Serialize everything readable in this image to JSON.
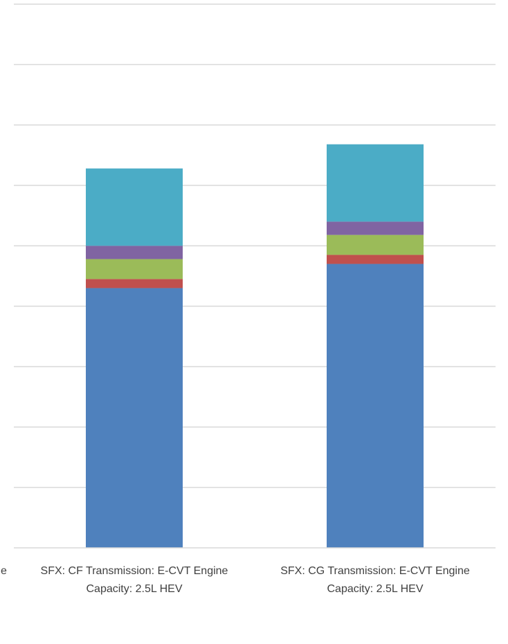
{
  "chart_data": {
    "type": "bar",
    "stacked": true,
    "categories": [
      [
        "SFX: CF Transmission: E-CVT Engine",
        "Capacity: 2.5L HEV"
      ],
      [
        "SFX: CG Transmission: E-CVT Engine",
        "Capacity: 2.5L HEV"
      ]
    ],
    "series": [
      {
        "color": "#4F81BD",
        "values": [
          4.3,
          4.7
        ]
      },
      {
        "color": "#C0504D",
        "values": [
          0.15,
          0.15
        ]
      },
      {
        "color": "#9BBB59",
        "values": [
          0.33,
          0.33
        ]
      },
      {
        "color": "#8064A2",
        "values": [
          0.22,
          0.22
        ]
      },
      {
        "color": "#4BACC6",
        "values": [
          1.28,
          1.28
        ]
      }
    ],
    "ylim": [
      0,
      9
    ],
    "gridlines": true,
    "legend": "none"
  }
}
